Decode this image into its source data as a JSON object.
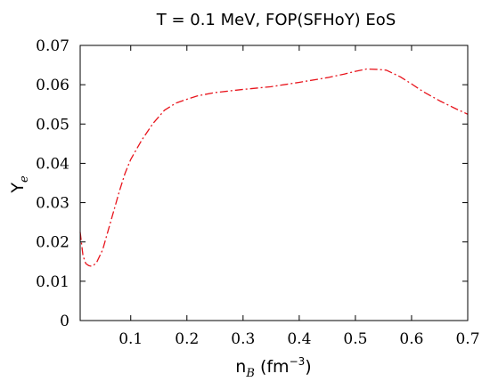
{
  "chart_data": {
    "type": "line",
    "title": "T = 0.1 MeV, FOP(SFHoY) EoS",
    "xlabel": {
      "base": "n",
      "sub": "B",
      "pre": " (fm",
      "sup": "−3",
      "post": ")"
    },
    "ylabel": {
      "base": "Y",
      "sub": "e"
    },
    "xlim": [
      0.01,
      0.7
    ],
    "ylim": [
      0,
      0.07
    ],
    "xticks": [
      0.1,
      0.2,
      0.3,
      0.4,
      0.5,
      0.6,
      0.7
    ],
    "xtick_labels": [
      "0.1",
      "0.2",
      "0.3",
      "0.4",
      "0.5",
      "0.6",
      "0.7"
    ],
    "yticks": [
      0,
      0.01,
      0.02,
      0.03,
      0.04,
      0.05,
      0.06,
      0.07
    ],
    "ytick_labels": [
      "0",
      "0.01",
      "0.02",
      "0.03",
      "0.04",
      "0.05",
      "0.06",
      "0.07"
    ],
    "grid": false,
    "legend": "none",
    "series": [
      {
        "color": "#e8141c",
        "line_style": "dash-dot",
        "x": [
          0.01,
          0.015,
          0.02,
          0.025,
          0.03,
          0.035,
          0.04,
          0.05,
          0.06,
          0.07,
          0.08,
          0.09,
          0.1,
          0.12,
          0.14,
          0.16,
          0.18,
          0.2,
          0.22,
          0.25,
          0.3,
          0.35,
          0.4,
          0.45,
          0.48,
          0.5,
          0.52,
          0.54,
          0.555,
          0.58,
          0.6,
          0.62,
          0.65,
          0.68,
          0.7
        ],
        "y": [
          0.0225,
          0.0165,
          0.0145,
          0.014,
          0.0138,
          0.0142,
          0.015,
          0.018,
          0.023,
          0.028,
          0.033,
          0.0375,
          0.041,
          0.046,
          0.0502,
          0.0535,
          0.0553,
          0.0563,
          0.0572,
          0.058,
          0.0588,
          0.0595,
          0.0606,
          0.0618,
          0.0627,
          0.0634,
          0.064,
          0.0639,
          0.0637,
          0.062,
          0.0602,
          0.0583,
          0.0559,
          0.0538,
          0.0525
        ]
      }
    ]
  }
}
